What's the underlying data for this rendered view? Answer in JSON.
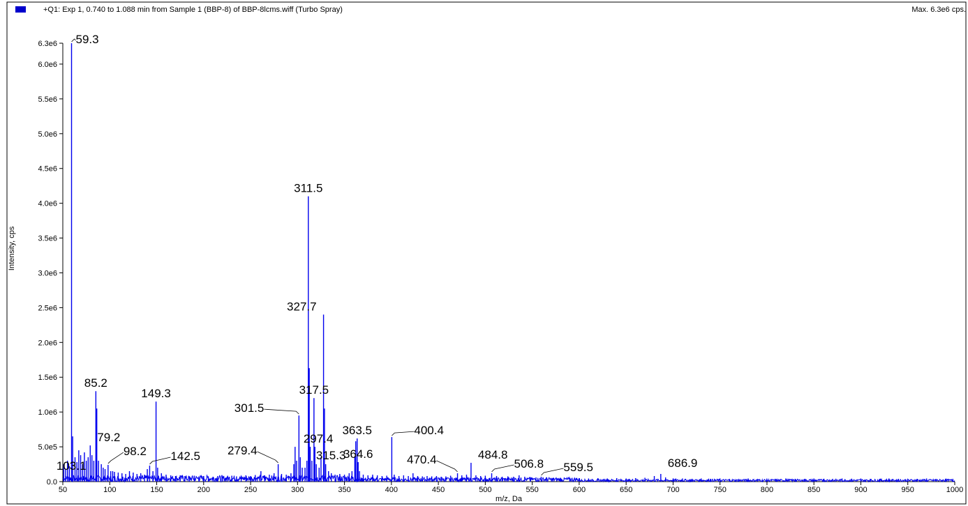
{
  "header": {
    "title": "+Q1: Exp 1, 0.740 to 1.088 min from Sample 1 (BBP-8) of BBP-8lcms.wiff (Turbo Spray)",
    "max_label": "Max. 6.3e6 cps."
  },
  "colors": {
    "series": "#0000ee",
    "axis": "#000000",
    "background": "#ffffff",
    "legend": "#0000cc"
  },
  "chart_data": {
    "type": "bar",
    "xlabel": "m/z, Da",
    "ylabel": "Intensity, cps",
    "xlim": [
      50,
      1000
    ],
    "ylim": [
      0,
      6300000
    ],
    "x_ticks": [
      50,
      100,
      150,
      200,
      250,
      300,
      350,
      400,
      450,
      500,
      550,
      600,
      650,
      700,
      750,
      800,
      850,
      900,
      950,
      1000
    ],
    "x_tick_labels": [
      "50",
      "100",
      "150",
      "200",
      "250",
      "300",
      "350",
      "400",
      "450",
      "500",
      "550",
      "600",
      "650",
      "700",
      "750",
      "800",
      "850",
      "900",
      "950",
      "1000"
    ],
    "y_ticks": [
      0,
      500000,
      1000000,
      1500000,
      2000000,
      2500000,
      3000000,
      3500000,
      4000000,
      4500000,
      5000000,
      5500000,
      6000000,
      6300000
    ],
    "y_tick_labels": [
      "0.0",
      "5.0e5",
      "1.0e6",
      "1.5e6",
      "2.0e6",
      "2.5e6",
      "3.0e6",
      "3.5e6",
      "4.0e6",
      "4.5e6",
      "5.0e6",
      "5.5e6",
      "6.0e6",
      "6.3e6"
    ],
    "peaks": [
      {
        "mz": 51,
        "i": 250000
      },
      {
        "mz": 53,
        "i": 180000
      },
      {
        "mz": 55,
        "i": 300000
      },
      {
        "mz": 57,
        "i": 220000
      },
      {
        "mz": 59.3,
        "i": 6300000
      },
      {
        "mz": 60.5,
        "i": 650000
      },
      {
        "mz": 63,
        "i": 350000
      },
      {
        "mz": 65,
        "i": 280000
      },
      {
        "mz": 67,
        "i": 450000
      },
      {
        "mz": 69,
        "i": 380000
      },
      {
        "mz": 71,
        "i": 250000
      },
      {
        "mz": 73,
        "i": 420000
      },
      {
        "mz": 75,
        "i": 300000
      },
      {
        "mz": 77,
        "i": 350000
      },
      {
        "mz": 79.2,
        "i": 520000
      },
      {
        "mz": 81,
        "i": 380000
      },
      {
        "mz": 83,
        "i": 300000
      },
      {
        "mz": 85.2,
        "i": 1300000
      },
      {
        "mz": 86.2,
        "i": 1050000
      },
      {
        "mz": 88,
        "i": 300000
      },
      {
        "mz": 91,
        "i": 250000
      },
      {
        "mz": 93,
        "i": 200000
      },
      {
        "mz": 95,
        "i": 180000
      },
      {
        "mz": 98.2,
        "i": 240000
      },
      {
        "mz": 101,
        "i": 150000
      },
      {
        "mz": 103.1,
        "i": 150000
      },
      {
        "mz": 105,
        "i": 140000
      },
      {
        "mz": 109,
        "i": 130000
      },
      {
        "mz": 113,
        "i": 120000
      },
      {
        "mz": 117,
        "i": 110000
      },
      {
        "mz": 121,
        "i": 150000
      },
      {
        "mz": 125,
        "i": 130000
      },
      {
        "mz": 129,
        "i": 110000
      },
      {
        "mz": 133,
        "i": 120000
      },
      {
        "mz": 137,
        "i": 100000
      },
      {
        "mz": 140,
        "i": 180000
      },
      {
        "mz": 142.5,
        "i": 230000
      },
      {
        "mz": 146,
        "i": 150000
      },
      {
        "mz": 149.3,
        "i": 1150000
      },
      {
        "mz": 151,
        "i": 200000
      },
      {
        "mz": 155,
        "i": 120000
      },
      {
        "mz": 160,
        "i": 100000
      },
      {
        "mz": 165,
        "i": 90000
      },
      {
        "mz": 170,
        "i": 80000
      },
      {
        "mz": 175,
        "i": 90000
      },
      {
        "mz": 180,
        "i": 80000
      },
      {
        "mz": 185,
        "i": 70000
      },
      {
        "mz": 190,
        "i": 85000
      },
      {
        "mz": 195,
        "i": 75000
      },
      {
        "mz": 200,
        "i": 80000
      },
      {
        "mz": 205,
        "i": 75000
      },
      {
        "mz": 210,
        "i": 70000
      },
      {
        "mz": 215,
        "i": 80000
      },
      {
        "mz": 220,
        "i": 75000
      },
      {
        "mz": 225,
        "i": 70000
      },
      {
        "mz": 230,
        "i": 85000
      },
      {
        "mz": 235,
        "i": 75000
      },
      {
        "mz": 240,
        "i": 80000
      },
      {
        "mz": 245,
        "i": 90000
      },
      {
        "mz": 250,
        "i": 80000
      },
      {
        "mz": 255,
        "i": 95000
      },
      {
        "mz": 261,
        "i": 150000
      },
      {
        "mz": 265,
        "i": 90000
      },
      {
        "mz": 270,
        "i": 100000
      },
      {
        "mz": 275,
        "i": 120000
      },
      {
        "mz": 279.4,
        "i": 250000
      },
      {
        "mz": 283,
        "i": 110000
      },
      {
        "mz": 288,
        "i": 100000
      },
      {
        "mz": 293,
        "i": 120000
      },
      {
        "mz": 296,
        "i": 250000
      },
      {
        "mz": 297.4,
        "i": 500000
      },
      {
        "mz": 299,
        "i": 300000
      },
      {
        "mz": 301.5,
        "i": 950000
      },
      {
        "mz": 303,
        "i": 350000
      },
      {
        "mz": 305,
        "i": 200000
      },
      {
        "mz": 308,
        "i": 200000
      },
      {
        "mz": 310,
        "i": 300000
      },
      {
        "mz": 311.5,
        "i": 4100000
      },
      {
        "mz": 312.5,
        "i": 1630000
      },
      {
        "mz": 313.5,
        "i": 500000
      },
      {
        "mz": 315.3,
        "i": 300000
      },
      {
        "mz": 317.5,
        "i": 1200000
      },
      {
        "mz": 318.5,
        "i": 500000
      },
      {
        "mz": 320,
        "i": 250000
      },
      {
        "mz": 323,
        "i": 200000
      },
      {
        "mz": 325,
        "i": 350000
      },
      {
        "mz": 327.7,
        "i": 2400000
      },
      {
        "mz": 328.7,
        "i": 1050000
      },
      {
        "mz": 330,
        "i": 250000
      },
      {
        "mz": 333,
        "i": 150000
      },
      {
        "mz": 336,
        "i": 120000
      },
      {
        "mz": 340,
        "i": 100000
      },
      {
        "mz": 345,
        "i": 110000
      },
      {
        "mz": 350,
        "i": 100000
      },
      {
        "mz": 355,
        "i": 120000
      },
      {
        "mz": 358,
        "i": 150000
      },
      {
        "mz": 361,
        "i": 350000
      },
      {
        "mz": 362,
        "i": 580000
      },
      {
        "mz": 363.5,
        "i": 620000
      },
      {
        "mz": 364.6,
        "i": 280000
      },
      {
        "mz": 366,
        "i": 150000
      },
      {
        "mz": 370,
        "i": 100000
      },
      {
        "mz": 375,
        "i": 90000
      },
      {
        "mz": 380,
        "i": 100000
      },
      {
        "mz": 385,
        "i": 90000
      },
      {
        "mz": 390,
        "i": 80000
      },
      {
        "mz": 395,
        "i": 85000
      },
      {
        "mz": 400.4,
        "i": 640000
      },
      {
        "mz": 403,
        "i": 100000
      },
      {
        "mz": 408,
        "i": 80000
      },
      {
        "mz": 413,
        "i": 90000
      },
      {
        "mz": 418,
        "i": 80000
      },
      {
        "mz": 423,
        "i": 120000
      },
      {
        "mz": 428,
        "i": 80000
      },
      {
        "mz": 433,
        "i": 75000
      },
      {
        "mz": 438,
        "i": 80000
      },
      {
        "mz": 443,
        "i": 75000
      },
      {
        "mz": 448,
        "i": 80000
      },
      {
        "mz": 453,
        "i": 70000
      },
      {
        "mz": 458,
        "i": 75000
      },
      {
        "mz": 463,
        "i": 85000
      },
      {
        "mz": 470.4,
        "i": 120000
      },
      {
        "mz": 475,
        "i": 90000
      },
      {
        "mz": 480,
        "i": 100000
      },
      {
        "mz": 484.8,
        "i": 270000
      },
      {
        "mz": 490,
        "i": 90000
      },
      {
        "mz": 495,
        "i": 80000
      },
      {
        "mz": 500,
        "i": 85000
      },
      {
        "mz": 506.8,
        "i": 120000
      },
      {
        "mz": 512,
        "i": 80000
      },
      {
        "mz": 518,
        "i": 70000
      },
      {
        "mz": 524,
        "i": 75000
      },
      {
        "mz": 530,
        "i": 70000
      },
      {
        "mz": 536,
        "i": 90000
      },
      {
        "mz": 542,
        "i": 70000
      },
      {
        "mz": 548,
        "i": 65000
      },
      {
        "mz": 554,
        "i": 60000
      },
      {
        "mz": 559.5,
        "i": 70000
      },
      {
        "mz": 565,
        "i": 60000
      },
      {
        "mz": 572,
        "i": 50000
      },
      {
        "mz": 580,
        "i": 55000
      },
      {
        "mz": 590,
        "i": 50000
      },
      {
        "mz": 600,
        "i": 50000
      },
      {
        "mz": 610,
        "i": 45000
      },
      {
        "mz": 620,
        "i": 50000
      },
      {
        "mz": 630,
        "i": 45000
      },
      {
        "mz": 640,
        "i": 50000
      },
      {
        "mz": 650,
        "i": 45000
      },
      {
        "mz": 660,
        "i": 50000
      },
      {
        "mz": 670,
        "i": 55000
      },
      {
        "mz": 680,
        "i": 80000
      },
      {
        "mz": 686.9,
        "i": 110000
      },
      {
        "mz": 692,
        "i": 60000
      },
      {
        "mz": 700,
        "i": 45000
      },
      {
        "mz": 710,
        "i": 45000
      },
      {
        "mz": 720,
        "i": 40000
      },
      {
        "mz": 730,
        "i": 45000
      },
      {
        "mz": 740,
        "i": 40000
      },
      {
        "mz": 750,
        "i": 45000
      },
      {
        "mz": 760,
        "i": 40000
      },
      {
        "mz": 770,
        "i": 40000
      },
      {
        "mz": 780,
        "i": 45000
      },
      {
        "mz": 790,
        "i": 40000
      },
      {
        "mz": 800,
        "i": 40000
      },
      {
        "mz": 810,
        "i": 40000
      },
      {
        "mz": 820,
        "i": 45000
      },
      {
        "mz": 830,
        "i": 40000
      },
      {
        "mz": 840,
        "i": 40000
      },
      {
        "mz": 850,
        "i": 45000
      },
      {
        "mz": 860,
        "i": 40000
      },
      {
        "mz": 870,
        "i": 40000
      },
      {
        "mz": 880,
        "i": 45000
      },
      {
        "mz": 890,
        "i": 40000
      },
      {
        "mz": 900,
        "i": 45000
      },
      {
        "mz": 910,
        "i": 40000
      },
      {
        "mz": 920,
        "i": 40000
      },
      {
        "mz": 930,
        "i": 45000
      },
      {
        "mz": 940,
        "i": 40000
      },
      {
        "mz": 950,
        "i": 40000
      },
      {
        "mz": 960,
        "i": 40000
      },
      {
        "mz": 970,
        "i": 45000
      },
      {
        "mz": 980,
        "i": 40000
      },
      {
        "mz": 990,
        "i": 40000
      },
      {
        "mz": 998,
        "i": 40000
      }
    ],
    "annotations": [
      {
        "text": "59.3",
        "mz": 59.3,
        "i": 6300000,
        "dx": 6,
        "dy": 0,
        "leader": true
      },
      {
        "text": "311.5",
        "mz": 311.5,
        "i": 4100000,
        "dx": 0,
        "dy": -6,
        "leader": false
      },
      {
        "text": "327.7",
        "mz": 327.7,
        "i": 2400000,
        "dx": -10,
        "dy": -6,
        "leader": false
      },
      {
        "text": "85.2",
        "mz": 85.2,
        "i": 1300000,
        "dx": 0,
        "dy": -6,
        "leader": false
      },
      {
        "text": "149.3",
        "mz": 149.3,
        "i": 1150000,
        "dx": 0,
        "dy": -6,
        "leader": false
      },
      {
        "text": "317.5",
        "mz": 317.5,
        "i": 1200000,
        "dx": 0,
        "dy": -6,
        "leader": false
      },
      {
        "text": "301.5",
        "mz": 301.5,
        "i": 950000,
        "dx": -50,
        "dy": -5,
        "leader": true
      },
      {
        "text": "79.2",
        "mz": 79.2,
        "i": 520000,
        "dx": 10,
        "dy": -6,
        "leader": false
      },
      {
        "text": "297.4",
        "mz": 297.4,
        "i": 500000,
        "dx": 12,
        "dy": -6,
        "leader": false
      },
      {
        "text": "363.5",
        "mz": 363.5,
        "i": 620000,
        "dx": 0,
        "dy": -6,
        "leader": false
      },
      {
        "text": "400.4",
        "mz": 400.4,
        "i": 640000,
        "dx": 32,
        "dy": -4,
        "leader": true
      },
      {
        "text": "98.2",
        "mz": 98.2,
        "i": 240000,
        "dx": 22,
        "dy": -14,
        "leader": true
      },
      {
        "text": "142.5",
        "mz": 142.5,
        "i": 230000,
        "dx": 30,
        "dy": -8,
        "leader": true
      },
      {
        "text": "279.4",
        "mz": 279.4,
        "i": 250000,
        "dx": -30,
        "dy": -14,
        "leader": true
      },
      {
        "text": "364.6",
        "mz": 364.6,
        "i": 280000,
        "dx": 0,
        "dy": -6,
        "leader": false
      },
      {
        "text": "470.4",
        "mz": 470.4,
        "i": 120000,
        "dx": -30,
        "dy": -14,
        "leader": true
      },
      {
        "text": "484.8",
        "mz": 484.8,
        "i": 270000,
        "dx": 10,
        "dy": -6,
        "leader": false
      },
      {
        "text": "506.8",
        "mz": 506.8,
        "i": 120000,
        "dx": 32,
        "dy": -8,
        "leader": true
      },
      {
        "text": "559.5",
        "mz": 559.5,
        "i": 70000,
        "dx": 32,
        "dy": -8,
        "leader": true
      },
      {
        "text": "315.3",
        "mz": 315.3,
        "i": 300000,
        "dx": 6,
        "dy": -2,
        "leader": false
      },
      {
        "text": "103.1",
        "mz": 103.1,
        "i": 150000,
        "dx": -38,
        "dy": -2,
        "leader": false
      },
      {
        "text": "686.9",
        "mz": 686.9,
        "i": 110000,
        "dx": 10,
        "dy": -10,
        "leader": false
      }
    ]
  }
}
